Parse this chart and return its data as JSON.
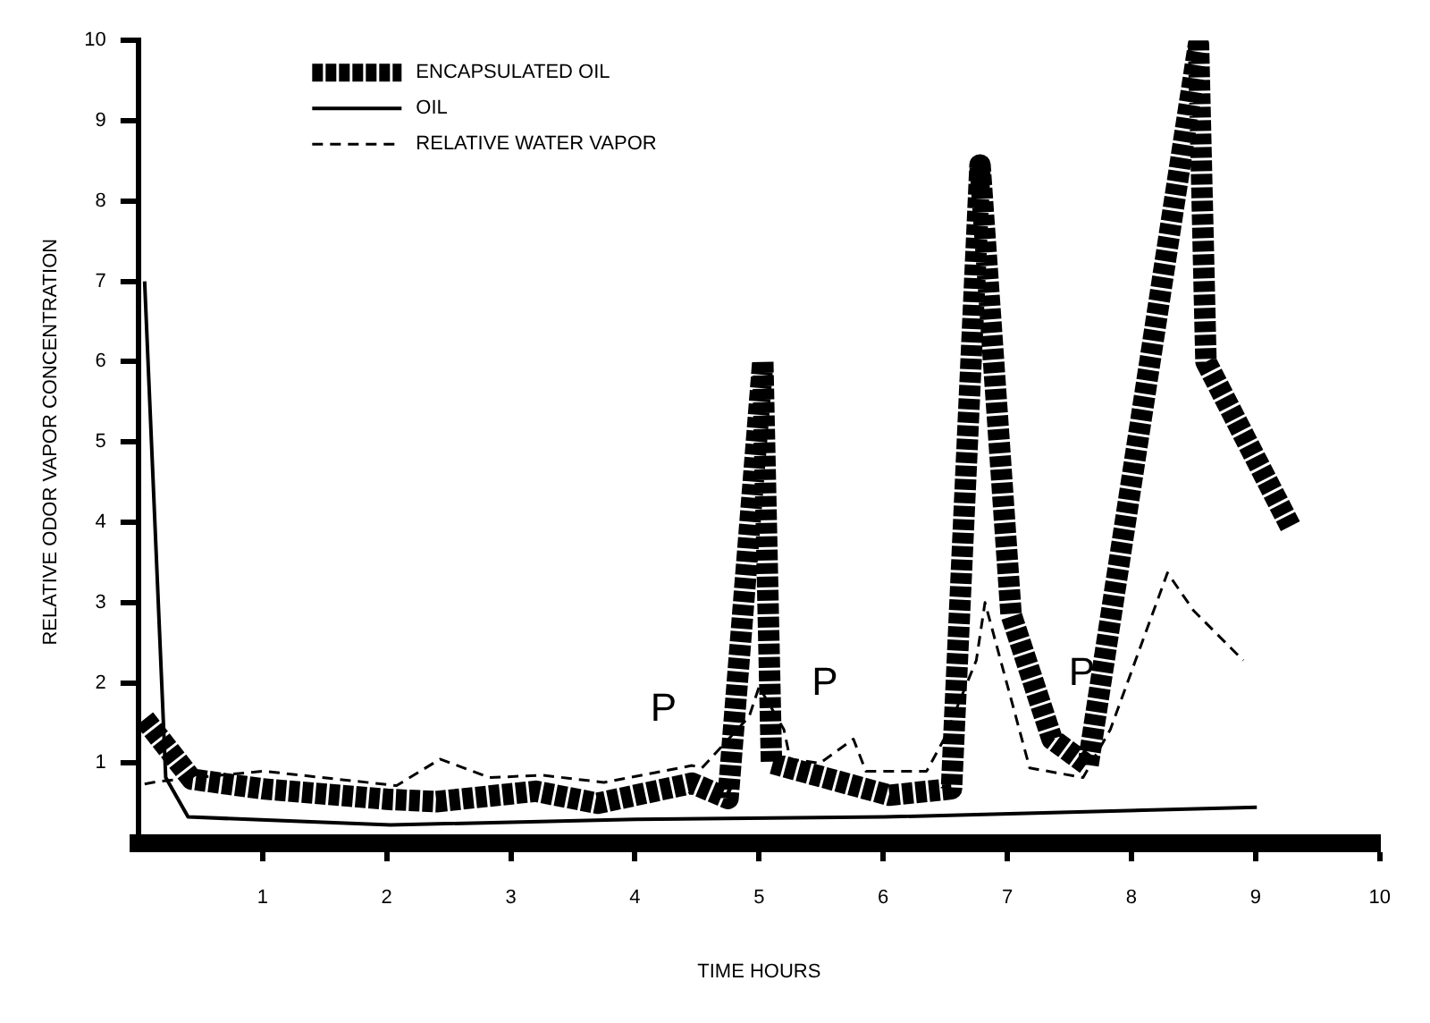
{
  "chart_data": {
    "type": "line",
    "xlabel": "TIME HOURS",
    "ylabel": "RELATIVE ODOR VAPOR CONCENTRATION",
    "xlim": [
      0,
      10
    ],
    "xticks": [
      1,
      2,
      3,
      4,
      5,
      6,
      7,
      8,
      9,
      10
    ],
    "ylim": [
      0,
      10
    ],
    "yticks": [
      1,
      2,
      3,
      4,
      5,
      6,
      7,
      8,
      9,
      10
    ],
    "grid": false,
    "legend": "top left",
    "marker": "none",
    "series": [
      {
        "name": "ENCAPSULATED OIL",
        "color": "#000000",
        "line_style": "dotted",
        "x": [
          0.05,
          0.43,
          1.0,
          2.0,
          2.4,
          3.2,
          3.7,
          4.46,
          4.75,
          5.03,
          5.1,
          6.05,
          6.55,
          6.78,
          7.03,
          7.36,
          7.65,
          8.54,
          8.6,
          9.28
        ],
        "values": [
          1.55,
          0.8,
          0.68,
          0.55,
          0.52,
          0.65,
          0.5,
          0.75,
          0.56,
          6.0,
          1.0,
          0.6,
          0.68,
          8.45,
          2.85,
          1.3,
          0.97,
          9.95,
          6.0,
          3.95
        ]
      },
      {
        "name": "OIL",
        "color": "#000000",
        "line_style": "solid",
        "x": [
          0.05,
          0.2,
          0.22,
          0.4,
          2.03,
          4.0,
          6.01,
          9.01
        ],
        "values": [
          7.0,
          1.55,
          0.82,
          0.33,
          0.23,
          0.3,
          0.33,
          0.45
        ]
      },
      {
        "name": "RELATIVE WATER VAPOR",
        "color": "#000000",
        "line_style": "dashed",
        "x": [
          0.05,
          0.15,
          0.46,
          1.01,
          2.08,
          2.43,
          2.83,
          3.25,
          3.75,
          4.46,
          4.54,
          4.92,
          5.0,
          5.2,
          5.25,
          5.49,
          5.76,
          5.86,
          6.35,
          6.49,
          6.75,
          6.82,
          7.18,
          7.61,
          7.83,
          8.29,
          8.5,
          8.9
        ],
        "values": [
          0.74,
          0.77,
          0.82,
          0.9,
          0.72,
          1.05,
          0.82,
          0.85,
          0.76,
          0.97,
          0.94,
          1.58,
          1.95,
          1.42,
          1.05,
          1.0,
          1.3,
          0.9,
          0.9,
          1.3,
          2.28,
          3.0,
          0.94,
          0.82,
          1.42,
          3.37,
          2.9,
          2.28
        ]
      }
    ],
    "annotations": [
      {
        "text": "P",
        "x": 4.46,
        "y": 0.97
      },
      {
        "text": "P",
        "x": 5.76,
        "y": 1.3
      },
      {
        "text": "P",
        "x": 7.83,
        "y": 1.42
      }
    ]
  }
}
